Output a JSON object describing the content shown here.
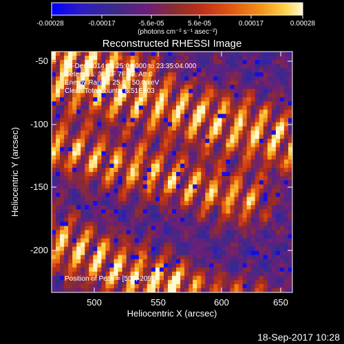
{
  "colorbar": {
    "tick_labels": [
      "-0.00028",
      "-0.00017",
      "-5.6e-05",
      "5.6e-05",
      "0.00017",
      "0.00028"
    ],
    "units_label": "(photons cm⁻² s⁻¹ asec⁻²)",
    "colors": [
      "#0000ff",
      "#2e1cc0",
      "#3a2a8a",
      "#6b1f7a",
      "#8e2d2a",
      "#c0301a",
      "#e25a12",
      "#f3951a",
      "#ffd24a",
      "#fff8d0"
    ]
  },
  "plot": {
    "title": "Reconstructed RHESSI Image",
    "info_lines": [
      "25-Dec-2014 23:25:04.000 to 23:35:04.000",
      "Detectors: 3F 6F 7F 9F, Att 0",
      "Energy Range: 25.0 - 50.0 keV",
      "Clean     Total counts: 6.51E+03"
    ],
    "peak_label": "Position of Peak = [508,-209]",
    "xlabel": "Heliocentric X (arcsec)",
    "ylabel": "Heliocentric Y (arcsec)",
    "xticks": [
      "500",
      "550",
      "600",
      "650"
    ],
    "yticks": [
      "-50",
      "-100",
      "-150",
      "-200"
    ]
  },
  "footer": {
    "timestamp": "18-Sep-2017 10:28"
  }
}
